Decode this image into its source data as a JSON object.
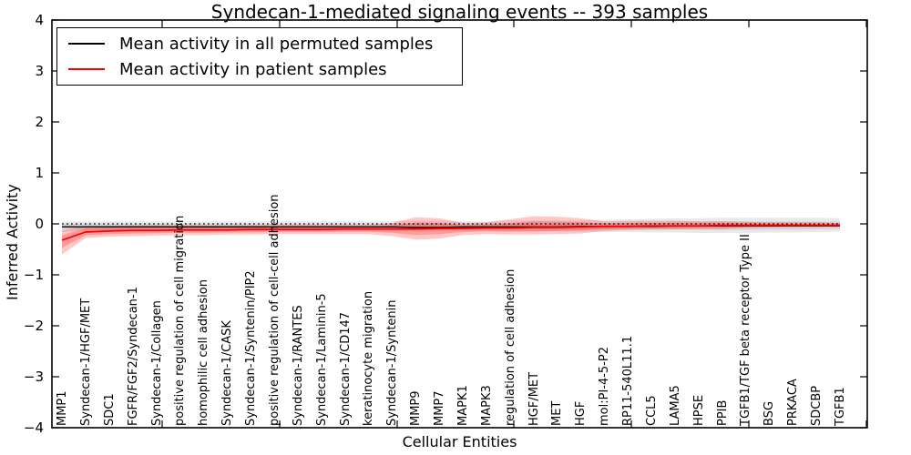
{
  "chart_data": {
    "type": "line",
    "title": "Syndecan-1-mediated signaling events -- 393 samples",
    "xlabel": "Cellular Entities",
    "ylabel": "Inferred Activity",
    "ylim": [
      -4,
      4
    ],
    "yticks": [
      4,
      3,
      2,
      1,
      0,
      -1,
      -2,
      -3,
      -4
    ],
    "ytick_labels": [
      "4",
      "3",
      "2",
      "1",
      "0",
      "−1",
      "−2",
      "−3",
      "−4"
    ],
    "grid": false,
    "legend_position": "upper left",
    "zero_line": {
      "y": 0,
      "style": "dotted",
      "color": "#000000"
    },
    "categories": [
      "MMP1",
      "Syndecan-1/HGF/MET",
      "SDC1",
      "FGFR/FGF2/Syndecan-1",
      "Syndecan-1/Collagen",
      "positive regulation of cell migration",
      "homophilic cell adhesion",
      "Syndecan-1/CASK",
      "Syndecan-1/Syntenin/PIP2",
      "positive regulation of cell-cell adhesion",
      "Syndecan-1/RANTES",
      "Syndecan-1/Laminin-5",
      "Syndecan-1/CD147",
      "keratinocyte migration",
      "Syndecan-1/Syntenin",
      "MMP9",
      "MMP7",
      "MAPK1",
      "MAPK3",
      "regulation of cell adhesion",
      "HGF/MET",
      "MET",
      "HGF",
      "mol:PI-4-5-P2",
      "RP11-540L11.1",
      "CCL5",
      "LAMA5",
      "HPSE",
      "PPIB",
      "TGFB1/TGF beta receptor Type II",
      "BSG",
      "PRKACA",
      "SDCBP",
      "TGFB1"
    ],
    "series": [
      {
        "name": "Mean activity in all permuted samples",
        "color": "#000000",
        "band_color": "#000000",
        "values": [
          -0.06,
          -0.06,
          -0.06,
          -0.06,
          -0.06,
          -0.06,
          -0.06,
          -0.06,
          -0.06,
          -0.06,
          -0.06,
          -0.06,
          -0.06,
          -0.06,
          -0.06,
          -0.07,
          -0.07,
          -0.06,
          -0.06,
          -0.06,
          -0.06,
          -0.06,
          -0.05,
          -0.05,
          -0.05,
          -0.05,
          -0.04,
          -0.04,
          -0.04,
          -0.04,
          -0.04,
          -0.04,
          -0.04,
          -0.04
        ],
        "band_upper": [
          0.05,
          0.05,
          0.05,
          0.05,
          0.05,
          0.05,
          0.05,
          0.05,
          0.05,
          0.05,
          0.05,
          0.05,
          0.05,
          0.05,
          0.05,
          0.06,
          0.06,
          0.05,
          0.05,
          0.06,
          0.06,
          0.06,
          0.07,
          0.08,
          0.09,
          0.1,
          0.11,
          0.11,
          0.12,
          0.12,
          0.12,
          0.12,
          0.12,
          0.11
        ],
        "band_lower": [
          -0.16,
          -0.15,
          -0.15,
          -0.15,
          -0.15,
          -0.14,
          -0.14,
          -0.14,
          -0.14,
          -0.14,
          -0.14,
          -0.14,
          -0.14,
          -0.14,
          -0.14,
          -0.15,
          -0.15,
          -0.14,
          -0.14,
          -0.15,
          -0.15,
          -0.15,
          -0.15,
          -0.16,
          -0.16,
          -0.17,
          -0.17,
          -0.18,
          -0.18,
          -0.18,
          -0.17,
          -0.17,
          -0.16,
          -0.15
        ]
      },
      {
        "name": "Mean activity in patient samples",
        "color": "#ff0000",
        "band_color": "#ff0000",
        "values": [
          -0.32,
          -0.16,
          -0.14,
          -0.13,
          -0.13,
          -0.12,
          -0.12,
          -0.12,
          -0.11,
          -0.11,
          -0.11,
          -0.11,
          -0.1,
          -0.1,
          -0.1,
          -0.1,
          -0.09,
          -0.09,
          -0.08,
          -0.08,
          -0.07,
          -0.07,
          -0.06,
          -0.05,
          -0.05,
          -0.04,
          -0.04,
          -0.04,
          -0.03,
          -0.03,
          -0.03,
          -0.03,
          -0.03,
          -0.03
        ],
        "band_upper": [
          -0.13,
          -0.04,
          -0.04,
          -0.03,
          -0.03,
          -0.03,
          -0.03,
          -0.03,
          -0.03,
          -0.02,
          -0.02,
          -0.02,
          -0.02,
          -0.02,
          0.02,
          0.13,
          0.11,
          0.02,
          0.03,
          0.09,
          0.15,
          0.14,
          0.11,
          0.05,
          0.06,
          0.06,
          0.06,
          0.05,
          0.05,
          0.04,
          0.03,
          0.03,
          0.03,
          0.02
        ],
        "band_lower": [
          -0.6,
          -0.28,
          -0.25,
          -0.24,
          -0.23,
          -0.22,
          -0.22,
          -0.21,
          -0.21,
          -0.2,
          -0.2,
          -0.2,
          -0.2,
          -0.2,
          -0.24,
          -0.31,
          -0.29,
          -0.22,
          -0.2,
          -0.21,
          -0.21,
          -0.2,
          -0.19,
          -0.14,
          -0.12,
          -0.11,
          -0.11,
          -0.1,
          -0.1,
          -0.08,
          -0.07,
          -0.06,
          -0.06,
          -0.05
        ]
      }
    ]
  }
}
